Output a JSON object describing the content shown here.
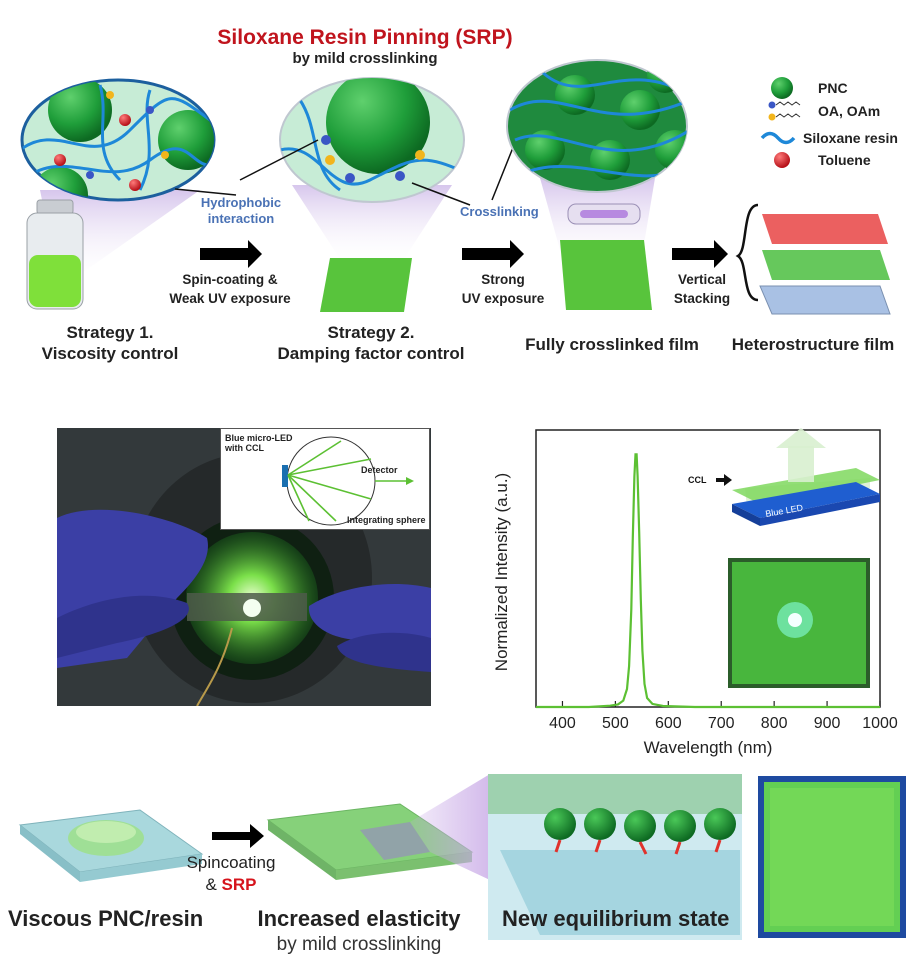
{
  "top": {
    "title": "Siloxane Resin Pinning (SRP)",
    "subtitle": "by mild crosslinking",
    "legend": [
      {
        "label": "PNC",
        "icon": "green-sphere-icon",
        "color": "#1f9e3a"
      },
      {
        "label": "OA, OAm",
        "icon": "ligand-chain-icon",
        "color": "#3a56c5"
      },
      {
        "label": "Siloxane resin",
        "icon": "blue-wave-icon",
        "color": "#1e88d8"
      },
      {
        "label": "Toluene",
        "icon": "red-sphere-icon",
        "color": "#d4161f"
      }
    ],
    "annotations": {
      "hydrophobic_line1": "Hydrophobic",
      "hydrophobic_line2": "interaction",
      "crosslinking": "Crosslinking"
    },
    "steps": [
      {
        "line1": "Spin-coating &",
        "line2": "Weak UV exposure"
      },
      {
        "line1": "Strong",
        "line2": "UV exposure"
      },
      {
        "line1": "Vertical",
        "line2": "Stacking"
      }
    ],
    "stages": [
      {
        "line1": "Strategy 1.",
        "line2": "Viscosity control"
      },
      {
        "line1": "Strategy 2.",
        "line2": "Damping factor control"
      },
      {
        "line1": "Fully crosslinked film",
        "line2": ""
      },
      {
        "line1": "Heterostructure film",
        "line2": ""
      }
    ],
    "stack_colors": [
      "#e84a4a",
      "#55c24a",
      "#a9c1e4"
    ]
  },
  "photo_inset": {
    "source_label_1": "Blue micro-LED",
    "source_label_2": "with CCL",
    "detector": "Detector",
    "sphere": "Integrating sphere"
  },
  "chart_data": {
    "type": "line",
    "xlabel": "Wavelength (nm)",
    "ylabel": "Normalized Intensity (a.u.)",
    "xlim": [
      350,
      1000
    ],
    "ylim": [
      0,
      1.08
    ],
    "xticks": [
      400,
      500,
      600,
      700,
      800,
      900,
      1000
    ],
    "line_color": "#5cc033",
    "grid": false,
    "series": [
      {
        "name": "",
        "points": [
          [
            350,
            0
          ],
          [
            450,
            0
          ],
          [
            490,
            0.005
          ],
          [
            505,
            0.01
          ],
          [
            515,
            0.025
          ],
          [
            522,
            0.07
          ],
          [
            526,
            0.16
          ],
          [
            530,
            0.38
          ],
          [
            533,
            0.66
          ],
          [
            536,
            0.9
          ],
          [
            538,
            0.985
          ],
          [
            540,
            0.985
          ],
          [
            542,
            0.9
          ],
          [
            545,
            0.68
          ],
          [
            548,
            0.42
          ],
          [
            551,
            0.22
          ],
          [
            555,
            0.09
          ],
          [
            560,
            0.035
          ],
          [
            570,
            0.012
          ],
          [
            590,
            0.004
          ],
          [
            650,
            0
          ],
          [
            1000,
            0
          ]
        ]
      }
    ],
    "inset_labels": {
      "ccl": "CCL",
      "blue_led": "Blue LED"
    }
  },
  "bottom": {
    "step_label_1": "Spincoating",
    "step_label_2": "&",
    "step_label_3": "SRP",
    "captions": [
      {
        "main": "Viscous PNC/resin",
        "sub": ""
      },
      {
        "main": "Increased elasticity",
        "sub": "by mild crosslinking"
      },
      {
        "main": "New equilibrium state",
        "sub": ""
      }
    ]
  }
}
